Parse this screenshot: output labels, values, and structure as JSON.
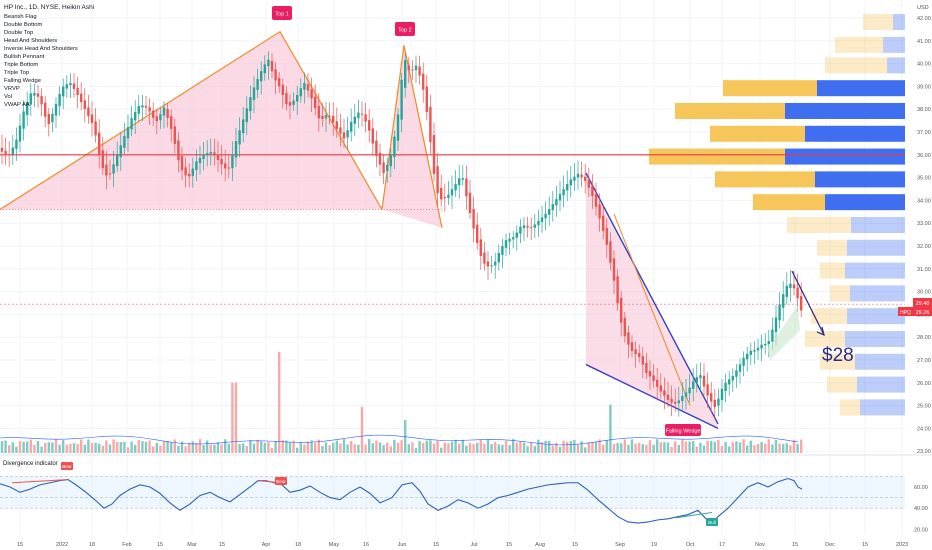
{
  "header": {
    "title": "HP Inc., 1D, NYSE, Heikin Ashi"
  },
  "indicators": [
    "Bearish Flag",
    "Double Bottom",
    "Double Top",
    "Head And Shoulders",
    "Inverse Head And Shoulders",
    "Bullish Pennant",
    "Triple Bottom",
    "Triple Top",
    "Falling Wedge",
    "VRVP",
    "Vol",
    "VWAP AA"
  ],
  "currency": "USD",
  "labels": {
    "top1": "Top 1",
    "top2": "Top 2",
    "wedge": "Falling Wedge",
    "target": "$28",
    "osc_title": "Divergence indicator",
    "bear": "Bear",
    "bull": "Bull"
  },
  "price_tags": {
    "last": "29.48",
    "symbol": "HPQ",
    "close": "29.26"
  },
  "colors": {
    "up": "#26a69a",
    "down": "#ef5350",
    "vp_up": "#3f6ff0",
    "vp_down": "#f7c65b",
    "osc_line": "#2f5fb6",
    "level": "#f23645",
    "wedge_line": "#3340c8",
    "pattern_line": "#f08a24"
  },
  "chart_data": [
    {
      "type": "candlestick",
      "title": "HP Inc., 1D, NYSE, Heikin Ashi",
      "y_axis_labels": [
        "42.00",
        "41.00",
        "40.00",
        "39.00",
        "38.00",
        "37.00",
        "36.00",
        "35.00",
        "34.00",
        "33.00",
        "32.00",
        "31.00",
        "30.00",
        "29.00",
        "28.00",
        "27.00",
        "26.00",
        "25.00",
        "24.00",
        "23.00"
      ],
      "ylim": [
        22.8,
        42.6
      ],
      "x_axis_labels": [
        "15",
        "2022",
        "18",
        "Feb",
        "15",
        "Mar",
        "15",
        "Apr",
        "18",
        "May",
        "16",
        "Jun",
        "15",
        "Jul",
        "15",
        "Aug",
        "15",
        "Sep",
        "19",
        "Oct",
        "17",
        "Nov",
        "15",
        "Dec",
        "15",
        "2023"
      ],
      "close_path": [
        [
          0,
          36.3
        ],
        [
          8,
          35.9
        ],
        [
          16,
          36.5
        ],
        [
          24,
          37.8
        ],
        [
          32,
          38.6
        ],
        [
          40,
          38.2
        ],
        [
          48,
          37.0
        ],
        [
          55,
          37.9
        ],
        [
          62,
          38.8
        ],
        [
          70,
          39.1
        ],
        [
          78,
          38.6
        ],
        [
          86,
          38.0
        ],
        [
          94,
          37.4
        ],
        [
          101,
          35.8
        ],
        [
          108,
          35.2
        ],
        [
          116,
          36.1
        ],
        [
          124,
          37.0
        ],
        [
          132,
          37.8
        ],
        [
          140,
          38.3
        ],
        [
          148,
          38.0
        ],
        [
          156,
          37.3
        ],
        [
          164,
          37.9
        ],
        [
          172,
          36.8
        ],
        [
          180,
          35.2
        ],
        [
          188,
          34.7
        ],
        [
          196,
          35.5
        ],
        [
          204,
          35.9
        ],
        [
          212,
          36.1
        ],
        [
          220,
          35.7
        ],
        [
          228,
          35.4
        ],
        [
          236,
          36.8
        ],
        [
          244,
          37.9
        ],
        [
          252,
          39.0
        ],
        [
          260,
          39.8
        ],
        [
          268,
          40.4
        ],
        [
          274,
          39.5
        ],
        [
          280,
          39.0
        ],
        [
          288,
          38.0
        ],
        [
          296,
          38.4
        ],
        [
          304,
          39.0
        ],
        [
          312,
          38.2
        ],
        [
          320,
          37.2
        ],
        [
          328,
          37.6
        ],
        [
          336,
          37.0
        ],
        [
          344,
          36.6
        ],
        [
          352,
          37.5
        ],
        [
          360,
          38.0
        ],
        [
          368,
          37.4
        ],
        [
          376,
          36.2
        ],
        [
          384,
          35.4
        ],
        [
          392,
          36.4
        ],
        [
          398,
          38.0
        ],
        [
          404,
          40.5
        ],
        [
          410,
          39.7
        ],
        [
          416,
          40.0
        ],
        [
          422,
          39.2
        ],
        [
          428,
          37.5
        ],
        [
          432,
          35.8
        ],
        [
          436,
          34.3
        ],
        [
          442,
          33.8
        ],
        [
          448,
          34.0
        ],
        [
          456,
          34.5
        ],
        [
          462,
          34.9
        ],
        [
          468,
          33.6
        ],
        [
          474,
          32.5
        ],
        [
          480,
          31.5
        ],
        [
          486,
          31.0
        ],
        [
          494,
          31.2
        ],
        [
          500,
          31.9
        ],
        [
          506,
          32.4
        ],
        [
          514,
          32.6
        ],
        [
          522,
          33.2
        ],
        [
          530,
          33.0
        ],
        [
          538,
          33.3
        ],
        [
          546,
          33.6
        ],
        [
          554,
          34.0
        ],
        [
          562,
          34.4
        ],
        [
          570,
          34.8
        ],
        [
          578,
          35.0
        ],
        [
          586,
          34.6
        ],
        [
          592,
          34.0
        ],
        [
          598,
          33.2
        ],
        [
          606,
          32.0
        ],
        [
          614,
          30.3
        ],
        [
          620,
          28.7
        ],
        [
          626,
          27.8
        ],
        [
          632,
          27.4
        ],
        [
          640,
          27.2
        ],
        [
          646,
          26.6
        ],
        [
          652,
          26.4
        ],
        [
          658,
          26.0
        ],
        [
          664,
          25.7
        ],
        [
          670,
          25.4
        ],
        [
          676,
          25.3
        ],
        [
          682,
          25.6
        ],
        [
          688,
          25.8
        ],
        [
          694,
          26.2
        ],
        [
          700,
          26.4
        ],
        [
          706,
          25.5
        ],
        [
          712,
          25.0
        ],
        [
          716,
          24.7
        ],
        [
          720,
          25.4
        ],
        [
          726,
          25.8
        ],
        [
          732,
          26.0
        ],
        [
          738,
          26.4
        ],
        [
          744,
          26.9
        ],
        [
          750,
          27.2
        ],
        [
          756,
          27.3
        ],
        [
          762,
          27.6
        ],
        [
          768,
          27.7
        ],
        [
          774,
          28.6
        ],
        [
          780,
          29.6
        ],
        [
          786,
          30.4
        ],
        [
          792,
          30.6
        ],
        [
          798,
          29.9
        ],
        [
          802,
          29.3
        ]
      ],
      "patterns": [
        {
          "name": "Top 1",
          "points": [
            [
              0,
              33.6
            ],
            [
              280,
              41.4
            ],
            [
              382,
              33.6
            ]
          ]
        },
        {
          "name": "Top 2",
          "points": [
            [
              382,
              33.6
            ],
            [
              404,
              40.8
            ],
            [
              442,
              32.8
            ]
          ]
        },
        {
          "name": "Falling Wedge",
          "upper": [
            [
              586,
              35.2
            ],
            [
              718,
              24.2
            ]
          ],
          "lower": [
            [
              586,
              26.8
            ],
            [
              718,
              24.0
            ]
          ]
        }
      ],
      "horizontal_levels": [
        36.0
      ],
      "forecast": {
        "from": [
          792,
          30.9
        ],
        "to": [
          824,
          28.1
        ],
        "label": "$28"
      },
      "volume_profile": [
        {
          "price": 41.8,
          "up": 30,
          "down": 12
        },
        {
          "price": 40.8,
          "up": 48,
          "down": 22
        },
        {
          "price": 39.9,
          "up": 62,
          "down": 18
        },
        {
          "price": 38.9,
          "up": 94,
          "down": 88
        },
        {
          "price": 37.9,
          "up": 110,
          "down": 120
        },
        {
          "price": 36.9,
          "up": 95,
          "down": 100
        },
        {
          "price": 35.9,
          "up": 136,
          "down": 120
        },
        {
          "price": 34.9,
          "up": 100,
          "down": 90
        },
        {
          "price": 33.9,
          "up": 72,
          "down": 80
        },
        {
          "price": 32.9,
          "up": 64,
          "down": 54
        },
        {
          "price": 31.9,
          "up": 30,
          "down": 58
        },
        {
          "price": 30.9,
          "up": 25,
          "down": 60
        },
        {
          "price": 29.9,
          "up": 20,
          "down": 55
        },
        {
          "price": 28.9,
          "up": 36,
          "down": 58
        },
        {
          "price": 27.9,
          "up": 40,
          "down": 60
        },
        {
          "price": 26.9,
          "up": 35,
          "down": 50
        },
        {
          "price": 25.9,
          "up": 30,
          "down": 48
        },
        {
          "price": 24.9,
          "up": 20,
          "down": 45
        }
      ],
      "volume_spikes": [
        [
          234,
          3.2
        ],
        [
          280,
          4.6
        ],
        [
          362,
          2.1
        ],
        [
          610,
          2.2
        ],
        [
          405,
          1.5
        ]
      ]
    },
    {
      "type": "line",
      "title": "Divergence indicator",
      "y_axis_labels": [
        "60.00",
        "40.00",
        "20.00"
      ],
      "ylim": [
        12,
        80
      ],
      "band": [
        40,
        70
      ],
      "values": [
        [
          0,
          63
        ],
        [
          10,
          60
        ],
        [
          20,
          55
        ],
        [
          30,
          58
        ],
        [
          40,
          62
        ],
        [
          50,
          64
        ],
        [
          60,
          66
        ],
        [
          68,
          67
        ],
        [
          76,
          62
        ],
        [
          86,
          55
        ],
        [
          96,
          47
        ],
        [
          104,
          40
        ],
        [
          112,
          44
        ],
        [
          120,
          52
        ],
        [
          130,
          58
        ],
        [
          140,
          62
        ],
        [
          150,
          60
        ],
        [
          160,
          54
        ],
        [
          170,
          45
        ],
        [
          180,
          38
        ],
        [
          190,
          44
        ],
        [
          200,
          52
        ],
        [
          210,
          55
        ],
        [
          220,
          50
        ],
        [
          230,
          46
        ],
        [
          240,
          53
        ],
        [
          250,
          60
        ],
        [
          258,
          66
        ],
        [
          266,
          66
        ],
        [
          274,
          64
        ],
        [
          282,
          62
        ],
        [
          290,
          55
        ],
        [
          300,
          57
        ],
        [
          310,
          61
        ],
        [
          320,
          55
        ],
        [
          330,
          50
        ],
        [
          340,
          48
        ],
        [
          350,
          55
        ],
        [
          360,
          60
        ],
        [
          370,
          54
        ],
        [
          380,
          45
        ],
        [
          392,
          50
        ],
        [
          402,
          62
        ],
        [
          412,
          64
        ],
        [
          420,
          56
        ],
        [
          428,
          44
        ],
        [
          438,
          38
        ],
        [
          448,
          42
        ],
        [
          458,
          48
        ],
        [
          468,
          45
        ],
        [
          478,
          40
        ],
        [
          488,
          44
        ],
        [
          498,
          50
        ],
        [
          508,
          52
        ],
        [
          518,
          55
        ],
        [
          528,
          58
        ],
        [
          538,
          60
        ],
        [
          548,
          62
        ],
        [
          558,
          63
        ],
        [
          568,
          64
        ],
        [
          578,
          64
        ],
        [
          588,
          57
        ],
        [
          598,
          48
        ],
        [
          608,
          40
        ],
        [
          618,
          32
        ],
        [
          628,
          27
        ],
        [
          638,
          26
        ],
        [
          648,
          27
        ],
        [
          658,
          29
        ],
        [
          668,
          30
        ],
        [
          678,
          32
        ],
        [
          688,
          34
        ],
        [
          698,
          38
        ],
        [
          706,
          30
        ],
        [
          712,
          26
        ],
        [
          718,
          32
        ],
        [
          728,
          40
        ],
        [
          738,
          50
        ],
        [
          748,
          60
        ],
        [
          758,
          64
        ],
        [
          768,
          60
        ],
        [
          778,
          65
        ],
        [
          788,
          68
        ],
        [
          794,
          66
        ],
        [
          798,
          60
        ],
        [
          802,
          58
        ]
      ]
    }
  ]
}
